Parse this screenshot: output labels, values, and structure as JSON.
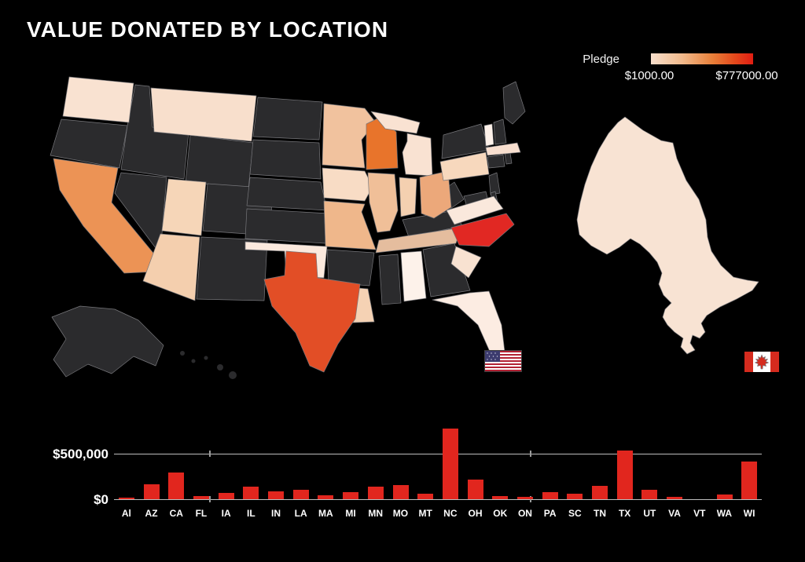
{
  "title": "VALUE DONATED BY LOCATION",
  "colors": {
    "background": "#000000",
    "no_data_state": "#2b2b2d",
    "state_border": "#77777b",
    "bar": "#e1261e",
    "gridline": "#bdbdbd",
    "text": "#ffffff"
  },
  "icons": {
    "us_flag": "us-flag-icon",
    "canada_flag": "canada-flag-icon"
  },
  "chart_data": [
    {
      "type": "choropleth",
      "title": "Value donated by location (US states + Ontario)",
      "legend": {
        "label": "Pledge",
        "min_label": "$1000.00",
        "max_label": "$777000.00",
        "gradient": [
          "#f8dfcc",
          "#e8803a",
          "#e01d12"
        ],
        "position": "top-right"
      },
      "no_data_color": "#2b2b2d",
      "regions": {
        "WA": "#f9e2d1",
        "MT": "#f8dfcc",
        "CA": "#ec9355",
        "UT": "#f6d6b8",
        "AZ": "#f4cfae",
        "MN": "#f1c29e",
        "WI": "#e8742b",
        "MI": "#f9e2d2",
        "IA": "#f8dcc5",
        "IL": "#f0bf98",
        "MO": "#efb78b",
        "IN": "#f4d0b0",
        "OH": "#eca87a",
        "OK": "#fbe9dd",
        "TX": "#e24e26",
        "LA": "#f5d2b4",
        "TN": "#e5bd9e",
        "NC": "#e12823",
        "VA": "#fae8dc",
        "SC": "#f8e2d1",
        "FL": "#fcece2",
        "AL": "#fdf2ea",
        "MA": "#f8dfcf",
        "VT": "#fdf1e9",
        "PA": "#f7d8bd",
        "ON": "#f8e3d3"
      }
    },
    {
      "type": "bar",
      "categories": [
        "Al",
        "AZ",
        "CA",
        "FL",
        "IA",
        "IL",
        "IN",
        "LA",
        "MA",
        "MI",
        "MN",
        "MO",
        "MT",
        "NC",
        "OH",
        "OK",
        "ON",
        "PA",
        "SC",
        "TN",
        "TX",
        "UT",
        "VA",
        "VT",
        "WA",
        "WI"
      ],
      "values": [
        20000,
        165000,
        290000,
        32000,
        66000,
        138000,
        89000,
        106000,
        46000,
        75000,
        135000,
        152000,
        58000,
        777000,
        217000,
        32000,
        26000,
        78000,
        61000,
        147000,
        535000,
        101000,
        26000,
        1000,
        55000,
        415000
      ],
      "ytick_labels": [
        "$500,000",
        "$0"
      ],
      "grid_values": [
        500000,
        0
      ],
      "ylim": [
        0,
        800000
      ],
      "xlabel": "",
      "ylabel": "",
      "bar_color": "#e1261e",
      "legend_position": "none"
    }
  ]
}
